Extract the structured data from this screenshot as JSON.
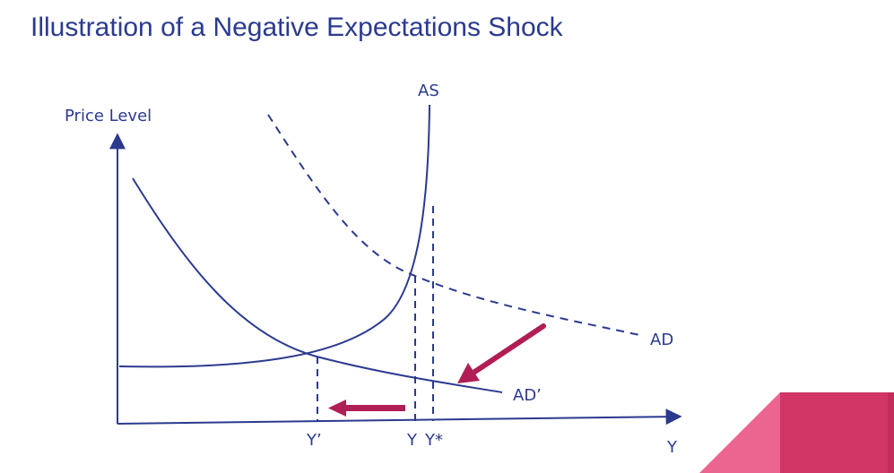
{
  "slide": {
    "title": "Illustration of a Negative Expectations Shock"
  },
  "axes": {
    "y_label": "Price Level",
    "x_label": "Y"
  },
  "curves": {
    "as_label": "AS",
    "ad_label": "AD",
    "ad_prime_label": "AD’"
  },
  "x_ticks": {
    "y_prime": "Y’",
    "y": "Y",
    "y_star": "Y*"
  },
  "colors": {
    "ink": "#2b3a8f",
    "arrow": "#b01e55",
    "corner_dark": "#d13565",
    "corner_light": "#ec6590"
  }
}
